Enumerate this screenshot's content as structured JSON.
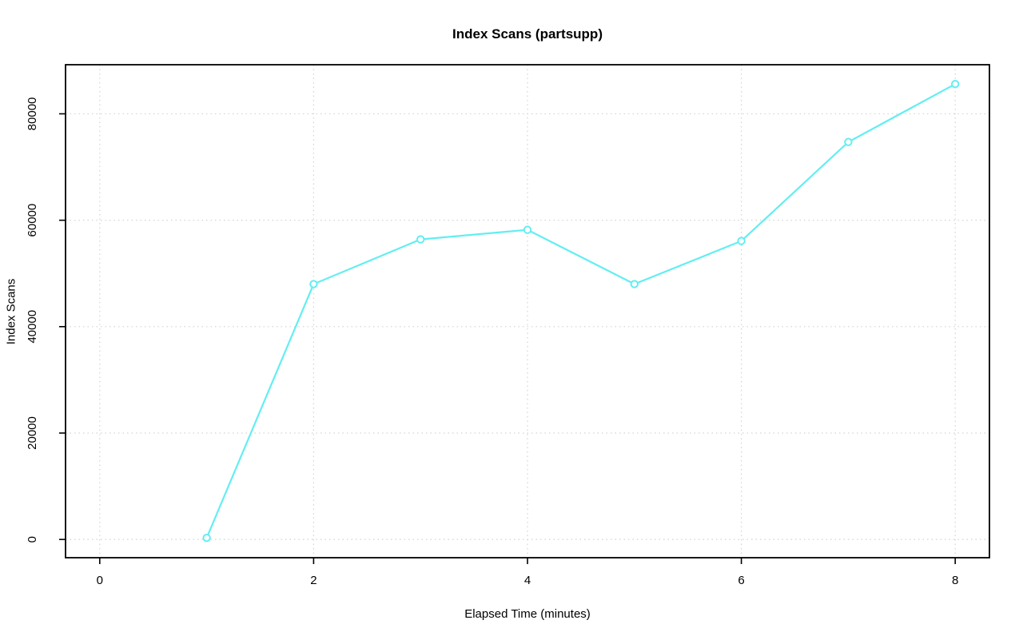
{
  "chart_data": {
    "type": "line",
    "title": "Index Scans (partsupp)",
    "xlabel": "Elapsed Time (minutes)",
    "ylabel": "Index Scans",
    "x": [
      1,
      2,
      3,
      4,
      5,
      6,
      7,
      8
    ],
    "series": [
      {
        "name": "index_scans_partsupp",
        "values": [
          300,
          48000,
          56400,
          58200,
          48000,
          56100,
          74700,
          85600
        ]
      }
    ],
    "xticks": {
      "values": [
        0,
        2,
        4,
        6,
        8
      ],
      "labels": [
        "0",
        "2",
        "4",
        "6",
        "8"
      ]
    },
    "yticks": {
      "values": [
        0,
        20000,
        40000,
        60000,
        80000
      ],
      "labels": [
        "0",
        "20000",
        "40000",
        "60000",
        "80000"
      ]
    },
    "xlim": [
      -0.32,
      8.32
    ],
    "ylim": [
      -3430,
      89230
    ],
    "grid": "dotted",
    "legend_position": "none",
    "colors": {
      "line": "#63eef1",
      "marker_stroke": "#63eef1",
      "marker_fill": "#ffffff",
      "grid": "#d3d3d3",
      "axis": "#000000",
      "background": "#ffffff"
    },
    "marker": "open-circle"
  }
}
